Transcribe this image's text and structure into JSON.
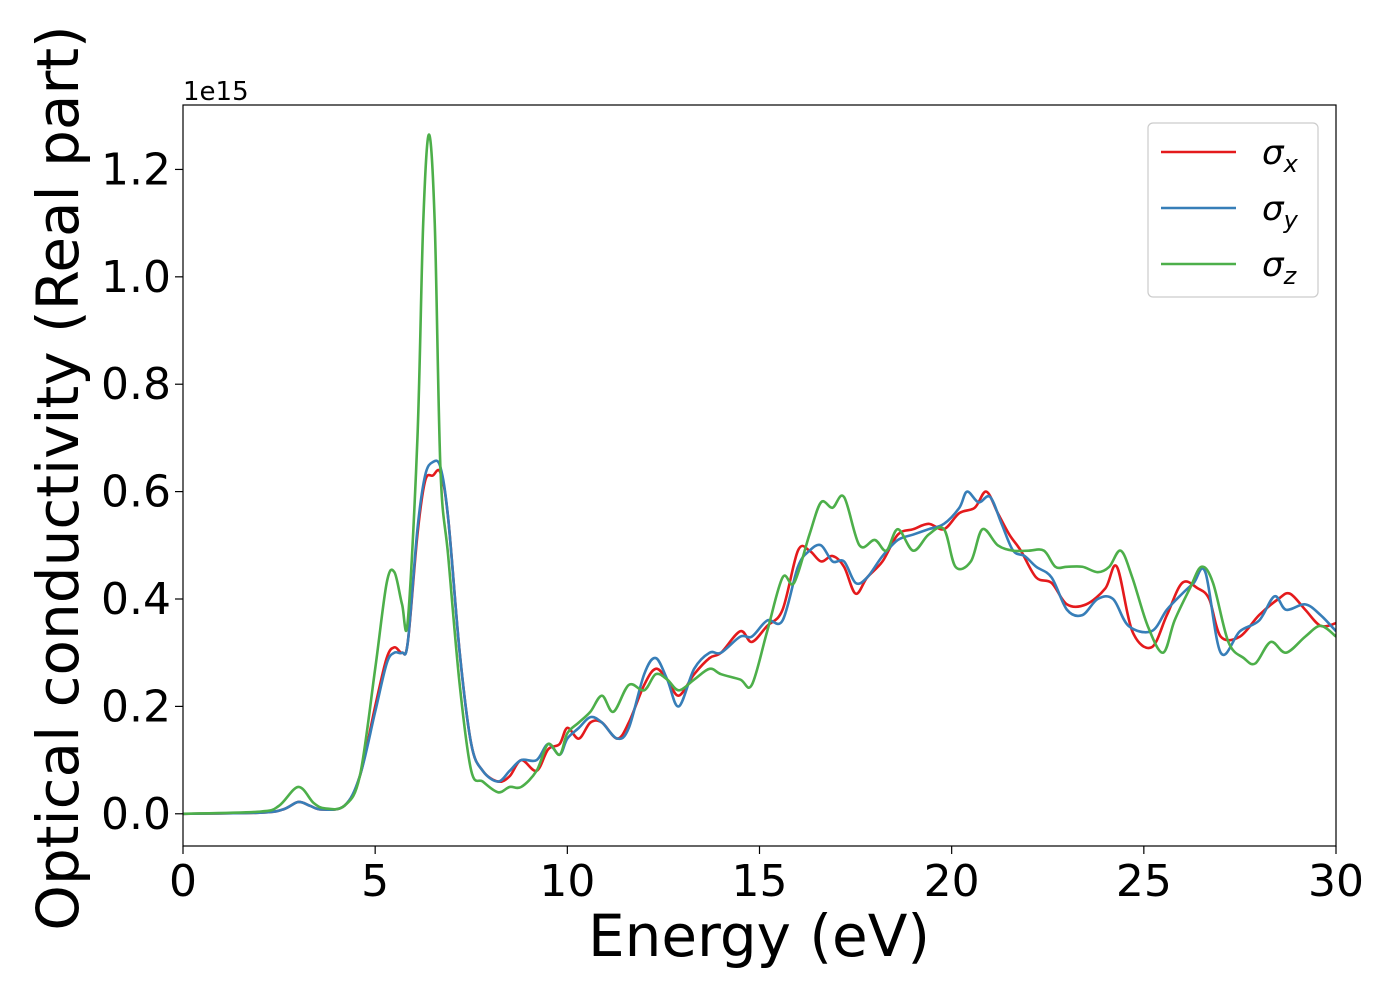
{
  "chart_data": {
    "type": "line",
    "xlabel": "Energy (eV)",
    "ylabel": "Optical conductivity (Real part)",
    "y_offset_label": "1e15",
    "xlim": [
      0,
      30
    ],
    "ylim": [
      -0.06,
      1.32
    ],
    "x_ticks": [
      0,
      5,
      10,
      15,
      20,
      25,
      30
    ],
    "x_tick_labels": [
      "0",
      "5",
      "10",
      "15",
      "20",
      "25",
      "30"
    ],
    "y_ticks": [
      0.0,
      0.2,
      0.4,
      0.6,
      0.8,
      1.0,
      1.2
    ],
    "y_tick_labels": [
      "0.0",
      "0.2",
      "0.4",
      "0.6",
      "0.8",
      "1.0",
      "1.2"
    ],
    "grid": false,
    "legend_position": "top-right",
    "series": [
      {
        "name": "σx",
        "legend_base": "σ",
        "legend_sub": "x",
        "color": "#e41a1c",
        "points": [
          [
            0,
            0
          ],
          [
            2,
            0.002
          ],
          [
            2.6,
            0.008
          ],
          [
            3,
            0.022
          ],
          [
            3.3,
            0.015
          ],
          [
            3.6,
            0.008
          ],
          [
            4.2,
            0.015
          ],
          [
            4.6,
            0.07
          ],
          [
            5,
            0.2
          ],
          [
            5.3,
            0.29
          ],
          [
            5.5,
            0.31
          ],
          [
            5.7,
            0.3
          ],
          [
            5.85,
            0.32
          ],
          [
            6.1,
            0.52
          ],
          [
            6.3,
            0.62
          ],
          [
            6.5,
            0.63
          ],
          [
            6.7,
            0.635
          ],
          [
            6.9,
            0.55
          ],
          [
            7.2,
            0.3
          ],
          [
            7.5,
            0.13
          ],
          [
            7.8,
            0.08
          ],
          [
            8.2,
            0.06
          ],
          [
            8.5,
            0.07
          ],
          [
            8.8,
            0.1
          ],
          [
            9.2,
            0.08
          ],
          [
            9.5,
            0.12
          ],
          [
            9.8,
            0.13
          ],
          [
            10,
            0.16
          ],
          [
            10.3,
            0.14
          ],
          [
            10.6,
            0.17
          ],
          [
            10.9,
            0.17
          ],
          [
            11.3,
            0.14
          ],
          [
            11.6,
            0.17
          ],
          [
            12,
            0.24
          ],
          [
            12.3,
            0.27
          ],
          [
            12.6,
            0.25
          ],
          [
            12.9,
            0.22
          ],
          [
            13.3,
            0.26
          ],
          [
            13.7,
            0.29
          ],
          [
            14,
            0.3
          ],
          [
            14.5,
            0.34
          ],
          [
            14.8,
            0.32
          ],
          [
            15.2,
            0.35
          ],
          [
            15.6,
            0.38
          ],
          [
            16,
            0.49
          ],
          [
            16.3,
            0.49
          ],
          [
            16.6,
            0.47
          ],
          [
            16.9,
            0.48
          ],
          [
            17.2,
            0.46
          ],
          [
            17.5,
            0.41
          ],
          [
            17.8,
            0.44
          ],
          [
            18.2,
            0.47
          ],
          [
            18.6,
            0.52
          ],
          [
            19,
            0.53
          ],
          [
            19.4,
            0.54
          ],
          [
            19.8,
            0.53
          ],
          [
            20.2,
            0.56
          ],
          [
            20.6,
            0.57
          ],
          [
            20.9,
            0.6
          ],
          [
            21.2,
            0.56
          ],
          [
            21.5,
            0.52
          ],
          [
            21.8,
            0.49
          ],
          [
            22.2,
            0.44
          ],
          [
            22.6,
            0.43
          ],
          [
            23,
            0.39
          ],
          [
            23.5,
            0.39
          ],
          [
            24,
            0.42
          ],
          [
            24.3,
            0.46
          ],
          [
            24.7,
            0.34
          ],
          [
            25.2,
            0.31
          ],
          [
            25.6,
            0.37
          ],
          [
            26,
            0.43
          ],
          [
            26.4,
            0.42
          ],
          [
            26.7,
            0.4
          ],
          [
            27,
            0.33
          ],
          [
            27.5,
            0.33
          ],
          [
            28,
            0.37
          ],
          [
            28.5,
            0.4
          ],
          [
            28.8,
            0.41
          ],
          [
            29.2,
            0.38
          ],
          [
            29.6,
            0.35
          ],
          [
            30,
            0.355
          ]
        ]
      },
      {
        "name": "σy",
        "legend_base": "σ",
        "legend_sub": "y",
        "color": "#377eb8",
        "points": [
          [
            0,
            0
          ],
          [
            2,
            0.002
          ],
          [
            2.6,
            0.008
          ],
          [
            3,
            0.022
          ],
          [
            3.3,
            0.015
          ],
          [
            3.6,
            0.008
          ],
          [
            4.2,
            0.015
          ],
          [
            4.6,
            0.07
          ],
          [
            5,
            0.19
          ],
          [
            5.3,
            0.28
          ],
          [
            5.5,
            0.3
          ],
          [
            5.7,
            0.3
          ],
          [
            5.85,
            0.32
          ],
          [
            6.1,
            0.53
          ],
          [
            6.3,
            0.63
          ],
          [
            6.5,
            0.655
          ],
          [
            6.7,
            0.645
          ],
          [
            6.9,
            0.55
          ],
          [
            7.2,
            0.3
          ],
          [
            7.5,
            0.13
          ],
          [
            7.8,
            0.08
          ],
          [
            8.2,
            0.06
          ],
          [
            8.5,
            0.08
          ],
          [
            8.8,
            0.1
          ],
          [
            9.2,
            0.1
          ],
          [
            9.5,
            0.13
          ],
          [
            9.8,
            0.11
          ],
          [
            10,
            0.14
          ],
          [
            10.3,
            0.16
          ],
          [
            10.6,
            0.18
          ],
          [
            10.9,
            0.17
          ],
          [
            11.3,
            0.14
          ],
          [
            11.6,
            0.16
          ],
          [
            12,
            0.26
          ],
          [
            12.3,
            0.29
          ],
          [
            12.6,
            0.25
          ],
          [
            12.9,
            0.2
          ],
          [
            13.3,
            0.27
          ],
          [
            13.7,
            0.3
          ],
          [
            14,
            0.3
          ],
          [
            14.5,
            0.33
          ],
          [
            14.8,
            0.33
          ],
          [
            15.2,
            0.36
          ],
          [
            15.6,
            0.36
          ],
          [
            16,
            0.46
          ],
          [
            16.3,
            0.49
          ],
          [
            16.6,
            0.5
          ],
          [
            16.9,
            0.47
          ],
          [
            17.2,
            0.47
          ],
          [
            17.5,
            0.43
          ],
          [
            17.8,
            0.44
          ],
          [
            18.2,
            0.48
          ],
          [
            18.6,
            0.51
          ],
          [
            19,
            0.52
          ],
          [
            19.4,
            0.53
          ],
          [
            19.8,
            0.54
          ],
          [
            20.2,
            0.57
          ],
          [
            20.4,
            0.6
          ],
          [
            20.7,
            0.58
          ],
          [
            21,
            0.59
          ],
          [
            21.3,
            0.54
          ],
          [
            21.6,
            0.49
          ],
          [
            21.9,
            0.48
          ],
          [
            22.2,
            0.46
          ],
          [
            22.6,
            0.44
          ],
          [
            23,
            0.38
          ],
          [
            23.4,
            0.37
          ],
          [
            23.8,
            0.4
          ],
          [
            24.2,
            0.4
          ],
          [
            24.6,
            0.35
          ],
          [
            25.2,
            0.34
          ],
          [
            25.6,
            0.38
          ],
          [
            26,
            0.41
          ],
          [
            26.3,
            0.43
          ],
          [
            26.6,
            0.45
          ],
          [
            27,
            0.3
          ],
          [
            27.5,
            0.34
          ],
          [
            28,
            0.36
          ],
          [
            28.4,
            0.405
          ],
          [
            28.7,
            0.38
          ],
          [
            29.2,
            0.39
          ],
          [
            29.6,
            0.37
          ],
          [
            30,
            0.34
          ]
        ]
      },
      {
        "name": "σz",
        "legend_base": "σ",
        "legend_sub": "z",
        "color": "#4daf4a",
        "points": [
          [
            0,
            0
          ],
          [
            2,
            0.004
          ],
          [
            2.5,
            0.015
          ],
          [
            3,
            0.05
          ],
          [
            3.4,
            0.02
          ],
          [
            3.7,
            0.01
          ],
          [
            4.2,
            0.015
          ],
          [
            4.6,
            0.07
          ],
          [
            5,
            0.27
          ],
          [
            5.3,
            0.43
          ],
          [
            5.5,
            0.45
          ],
          [
            5.7,
            0.39
          ],
          [
            5.85,
            0.36
          ],
          [
            6.1,
            0.7
          ],
          [
            6.25,
            1.1
          ],
          [
            6.4,
            1.265
          ],
          [
            6.55,
            1.1
          ],
          [
            6.7,
            0.64
          ],
          [
            6.9,
            0.48
          ],
          [
            7.2,
            0.24
          ],
          [
            7.5,
            0.08
          ],
          [
            7.8,
            0.06
          ],
          [
            8.2,
            0.04
          ],
          [
            8.5,
            0.05
          ],
          [
            8.8,
            0.05
          ],
          [
            9.2,
            0.08
          ],
          [
            9.5,
            0.13
          ],
          [
            9.8,
            0.11
          ],
          [
            10,
            0.15
          ],
          [
            10.3,
            0.17
          ],
          [
            10.6,
            0.19
          ],
          [
            10.9,
            0.22
          ],
          [
            11.2,
            0.19
          ],
          [
            11.6,
            0.24
          ],
          [
            12,
            0.23
          ],
          [
            12.3,
            0.26
          ],
          [
            12.6,
            0.25
          ],
          [
            12.9,
            0.23
          ],
          [
            13.3,
            0.25
          ],
          [
            13.7,
            0.27
          ],
          [
            14,
            0.26
          ],
          [
            14.5,
            0.25
          ],
          [
            14.8,
            0.24
          ],
          [
            15.2,
            0.34
          ],
          [
            15.6,
            0.44
          ],
          [
            15.9,
            0.43
          ],
          [
            16.3,
            0.52
          ],
          [
            16.6,
            0.58
          ],
          [
            16.9,
            0.57
          ],
          [
            17.2,
            0.59
          ],
          [
            17.6,
            0.5
          ],
          [
            18,
            0.51
          ],
          [
            18.3,
            0.49
          ],
          [
            18.6,
            0.53
          ],
          [
            19,
            0.49
          ],
          [
            19.4,
            0.52
          ],
          [
            19.8,
            0.53
          ],
          [
            20.1,
            0.46
          ],
          [
            20.5,
            0.47
          ],
          [
            20.8,
            0.53
          ],
          [
            21.2,
            0.5
          ],
          [
            21.6,
            0.49
          ],
          [
            22,
            0.49
          ],
          [
            22.4,
            0.49
          ],
          [
            22.7,
            0.46
          ],
          [
            23,
            0.46
          ],
          [
            23.4,
            0.46
          ],
          [
            23.8,
            0.45
          ],
          [
            24.1,
            0.46
          ],
          [
            24.4,
            0.49
          ],
          [
            24.7,
            0.44
          ],
          [
            25.1,
            0.35
          ],
          [
            25.5,
            0.3
          ],
          [
            25.8,
            0.36
          ],
          [
            26.2,
            0.42
          ],
          [
            26.5,
            0.46
          ],
          [
            26.8,
            0.43
          ],
          [
            27.2,
            0.32
          ],
          [
            27.6,
            0.29
          ],
          [
            27.9,
            0.28
          ],
          [
            28.3,
            0.32
          ],
          [
            28.7,
            0.3
          ],
          [
            29.2,
            0.33
          ],
          [
            29.6,
            0.35
          ],
          [
            30,
            0.33
          ]
        ]
      }
    ]
  }
}
